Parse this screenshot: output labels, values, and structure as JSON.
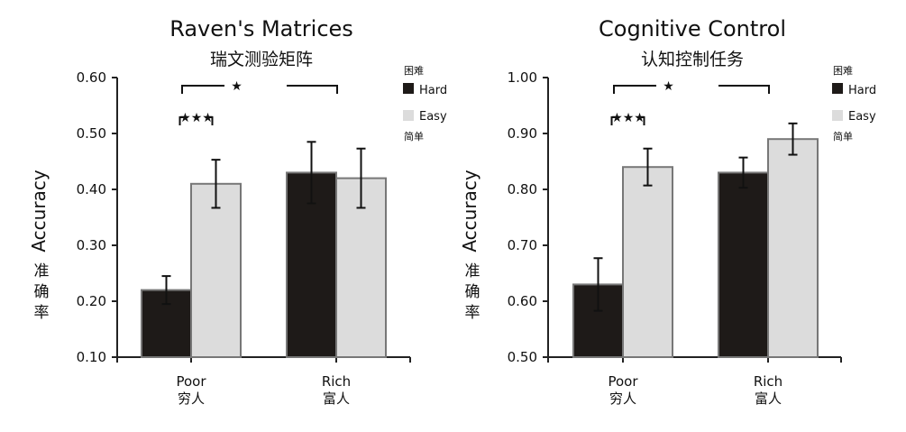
{
  "colors": {
    "hard": "#1e1a18",
    "easy": "#dcdcdc",
    "bar_edge": "#777777",
    "axis": "#222222"
  },
  "chart_data": [
    {
      "type": "bar",
      "title": "Raven's Matrices",
      "subtitle": "瑞文测验矩阵",
      "ylabel": "Accuracy",
      "ylabel_cn": [
        "准",
        "确",
        "率"
      ],
      "ylim": [
        0.1,
        0.6
      ],
      "yticks": [
        "0.10",
        "0.20",
        "0.30",
        "0.40",
        "0.50",
        "0.60"
      ],
      "categories": [
        "Poor",
        "Rich"
      ],
      "categories_cn": [
        "穷人",
        "富人"
      ],
      "series": [
        {
          "name": "Hard",
          "name_cn": "困难",
          "values": [
            0.22,
            0.43
          ],
          "errors": [
            0.025,
            0.055
          ]
        },
        {
          "name": "Easy",
          "name_cn": "简单",
          "values": [
            0.41,
            0.42
          ],
          "errors": [
            0.043,
            0.053
          ]
        }
      ],
      "annotations": [
        {
          "label": "★",
          "between": "Poor-Rich (Hard)"
        },
        {
          "label": "★★★",
          "between": "Poor Hard-Easy"
        }
      ]
    },
    {
      "type": "bar",
      "title": "Cognitive Control",
      "subtitle": "认知控制任务",
      "ylabel": "Accuracy",
      "ylabel_cn": [
        "准",
        "确",
        "率"
      ],
      "ylim": [
        0.5,
        1.0
      ],
      "yticks": [
        "0.50",
        "0.60",
        "0.70",
        "0.80",
        "0.90",
        "1.00"
      ],
      "categories": [
        "Poor",
        "Rich"
      ],
      "categories_cn": [
        "穷人",
        "富人"
      ],
      "series": [
        {
          "name": "Hard",
          "name_cn": "困难",
          "values": [
            0.63,
            0.83
          ],
          "errors": [
            0.047,
            0.027
          ]
        },
        {
          "name": "Easy",
          "name_cn": "简单",
          "values": [
            0.84,
            0.89
          ],
          "errors": [
            0.033,
            0.028
          ]
        }
      ],
      "annotations": [
        {
          "label": "★",
          "between": "Poor-Rich (Hard)"
        },
        {
          "label": "★★★",
          "between": "Poor Hard-Easy"
        }
      ]
    }
  ]
}
